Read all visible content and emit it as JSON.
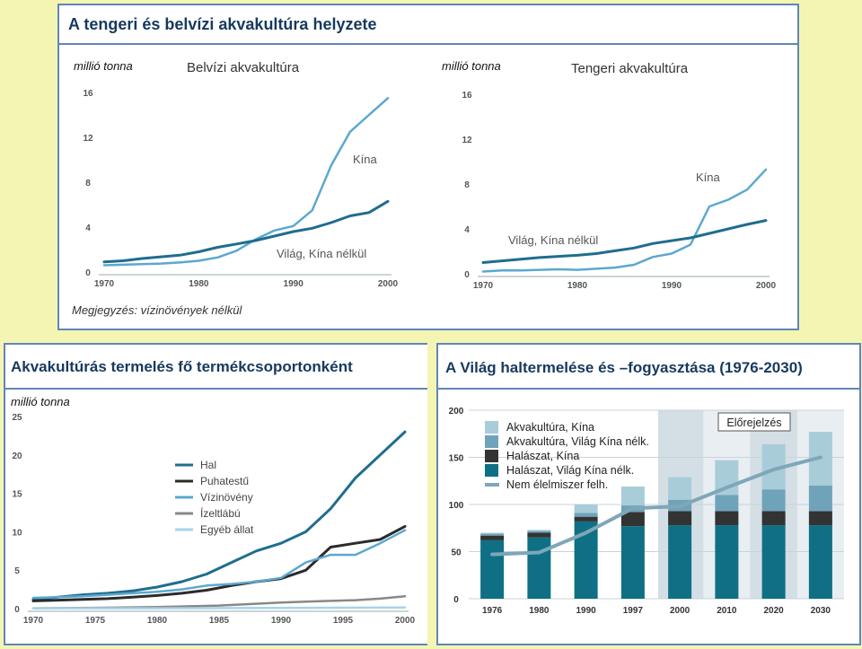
{
  "top": {
    "title": "A tengeri és belvízi akvakultúra helyzete",
    "note": "Megjegyzés: vízinövények nélkül",
    "left": {
      "unit": "millió tonna",
      "subtitle": "Belvízi akvakultúra",
      "label_china": "Kína",
      "label_world": "Világ, Kína nélkül"
    },
    "right": {
      "unit": "millió tonna",
      "subtitle": "Tengeri akvakultúra",
      "label_china": "Kína",
      "label_world": "Világ, Kína nélkül"
    }
  },
  "bl": {
    "title": "Akvakultúrás termelés fő termékcsoportonként",
    "unit": "millió tonna"
  },
  "br": {
    "title": "A Világ haltermelése és –fogyasztása (1976-2030)",
    "forecast": "Előrejelzés"
  },
  "chart_data": [
    {
      "id": "inland",
      "type": "line",
      "title": "Belvízi akvakultúra",
      "ylabel": "millió tonna",
      "ylim": [
        0,
        16
      ],
      "yticks": [
        0,
        4,
        8,
        12,
        16
      ],
      "xlim": [
        1970,
        2000
      ],
      "xticks": [
        1970,
        1980,
        1990,
        2000
      ],
      "series": [
        {
          "name": "Kína",
          "color": "#5ba8cf",
          "width": 2.5,
          "x": [
            1970,
            1972,
            1974,
            1976,
            1978,
            1980,
            1982,
            1984,
            1986,
            1988,
            1990,
            1992,
            1994,
            1996,
            1998,
            2000
          ],
          "y": [
            0.6,
            0.65,
            0.7,
            0.75,
            0.85,
            1.0,
            1.3,
            1.9,
            2.9,
            3.7,
            4.1,
            5.5,
            9.5,
            12.5,
            14,
            15.5
          ]
        },
        {
          "name": "Világ, Kína nélkül",
          "color": "#1f6d8e",
          "width": 3,
          "x": [
            1970,
            1972,
            1974,
            1976,
            1978,
            1980,
            1982,
            1984,
            1986,
            1988,
            1990,
            1992,
            1994,
            1996,
            1998,
            2000
          ],
          "y": [
            0.9,
            1.0,
            1.2,
            1.35,
            1.5,
            1.8,
            2.2,
            2.5,
            2.8,
            3.2,
            3.6,
            3.9,
            4.4,
            5.0,
            5.3,
            6.3
          ]
        }
      ]
    },
    {
      "id": "marine",
      "type": "line",
      "title": "Tengeri akvakultúra",
      "ylabel": "millió tonna",
      "ylim": [
        0,
        16
      ],
      "yticks": [
        0,
        4,
        8,
        12,
        16
      ],
      "xlim": [
        1970,
        2000
      ],
      "xticks": [
        1970,
        1980,
        1990,
        2000
      ],
      "series": [
        {
          "name": "Kína",
          "color": "#5ba8cf",
          "width": 2.5,
          "x": [
            1970,
            1972,
            1974,
            1976,
            1978,
            1980,
            1982,
            1984,
            1986,
            1988,
            1990,
            1992,
            1994,
            1996,
            1998,
            2000
          ],
          "y": [
            0.2,
            0.3,
            0.3,
            0.35,
            0.4,
            0.35,
            0.45,
            0.55,
            0.8,
            1.5,
            1.8,
            2.6,
            6.0,
            6.6,
            7.5,
            9.3
          ]
        },
        {
          "name": "Világ, Kína nélkül",
          "color": "#1f6d8e",
          "width": 3,
          "x": [
            1970,
            1972,
            1974,
            1976,
            1978,
            1980,
            1982,
            1984,
            1986,
            1988,
            1990,
            1992,
            1994,
            1996,
            1998,
            2000
          ],
          "y": [
            1.0,
            1.15,
            1.3,
            1.45,
            1.55,
            1.65,
            1.8,
            2.05,
            2.3,
            2.7,
            2.95,
            3.2,
            3.6,
            4.0,
            4.4,
            4.75
          ]
        }
      ]
    },
    {
      "id": "groups",
      "type": "line",
      "title": "Akvakultúrás termelés fő termékcsoportonként",
      "ylabel": "millió tonna",
      "ylim": [
        0,
        25
      ],
      "yticks": [
        0,
        5,
        10,
        15,
        20,
        25
      ],
      "xlim": [
        1970,
        2000
      ],
      "xticks": [
        1970,
        1975,
        1980,
        1985,
        1990,
        1995,
        2000
      ],
      "legend": "top-center",
      "series": [
        {
          "name": "Hal",
          "color": "#1f6d8e",
          "width": 3,
          "x": [
            1970,
            1972,
            1974,
            1976,
            1978,
            1980,
            1982,
            1984,
            1986,
            1988,
            1990,
            1992,
            1994,
            1996,
            1998,
            2000
          ],
          "y": [
            1.2,
            1.5,
            1.8,
            2.0,
            2.3,
            2.8,
            3.5,
            4.5,
            6.0,
            7.5,
            8.5,
            10,
            13,
            17,
            20,
            23
          ]
        },
        {
          "name": "Puhatestű",
          "color": "#2b2b2b",
          "width": 3,
          "x": [
            1970,
            1972,
            1974,
            1976,
            1978,
            1980,
            1982,
            1984,
            1986,
            1988,
            1990,
            1992,
            1994,
            1996,
            1998,
            2000
          ],
          "y": [
            1.0,
            1.1,
            1.2,
            1.3,
            1.5,
            1.7,
            2.0,
            2.4,
            3.0,
            3.5,
            3.9,
            5.0,
            8.0,
            8.5,
            9.0,
            10.7
          ]
        },
        {
          "name": "Vízinövény",
          "color": "#5ba8cf",
          "width": 2.5,
          "x": [
            1970,
            1972,
            1974,
            1976,
            1978,
            1980,
            1982,
            1984,
            1986,
            1988,
            1990,
            1992,
            1994,
            1996,
            1998,
            2000
          ],
          "y": [
            1.4,
            1.5,
            1.6,
            1.8,
            2.0,
            2.2,
            2.5,
            3.0,
            3.2,
            3.5,
            4.0,
            6.0,
            7.0,
            7.0,
            8.5,
            10.2
          ]
        },
        {
          "name": "Ízeltlábú",
          "color": "#888888",
          "width": 2.5,
          "x": [
            1970,
            1975,
            1980,
            1985,
            1990,
            1992,
            1994,
            1996,
            1998,
            2000
          ],
          "y": [
            0.05,
            0.1,
            0.2,
            0.4,
            0.8,
            0.9,
            1.0,
            1.1,
            1.3,
            1.6
          ]
        },
        {
          "name": "Egyéb állat",
          "color": "#a7d3e8",
          "width": 2.5,
          "x": [
            1970,
            1980,
            1990,
            2000
          ],
          "y": [
            0.05,
            0.05,
            0.08,
            0.15
          ]
        }
      ]
    },
    {
      "id": "fish",
      "type": "bar",
      "stacked": true,
      "title": "A Világ haltermelése és –fogyasztása (1976-2030)",
      "ylim": [
        0,
        200
      ],
      "yticks": [
        0,
        50,
        100,
        150,
        200
      ],
      "categories": [
        "1976",
        "1980",
        "1990",
        "1997",
        "2000",
        "2010",
        "2020",
        "2030"
      ],
      "forecast_from": "2000",
      "legend": "top-left",
      "series": [
        {
          "name": "Halászat, Világ Kína nélk.",
          "color": "#0f7085",
          "values": [
            62,
            65,
            82,
            77,
            78,
            78,
            78,
            78
          ]
        },
        {
          "name": "Halászat, Kína",
          "color": "#333333",
          "values": [
            5,
            5,
            5,
            15,
            15,
            15,
            15,
            15
          ]
        },
        {
          "name": "Akvakultúra, Világ Kína nélk.",
          "color": "#6fa3ba",
          "values": [
            2,
            2,
            4,
            7,
            12,
            17,
            23,
            27
          ]
        },
        {
          "name": "Akvakultúra, Kína",
          "color": "#a9ccd9",
          "values": [
            1,
            1,
            9,
            20,
            24,
            37,
            48,
            57
          ]
        }
      ],
      "line": {
        "name": "Nem élelmiszer felh.",
        "color": "#7ea7b8",
        "values": [
          47,
          49,
          70,
          96,
          98,
          118,
          137,
          150
        ]
      }
    }
  ]
}
